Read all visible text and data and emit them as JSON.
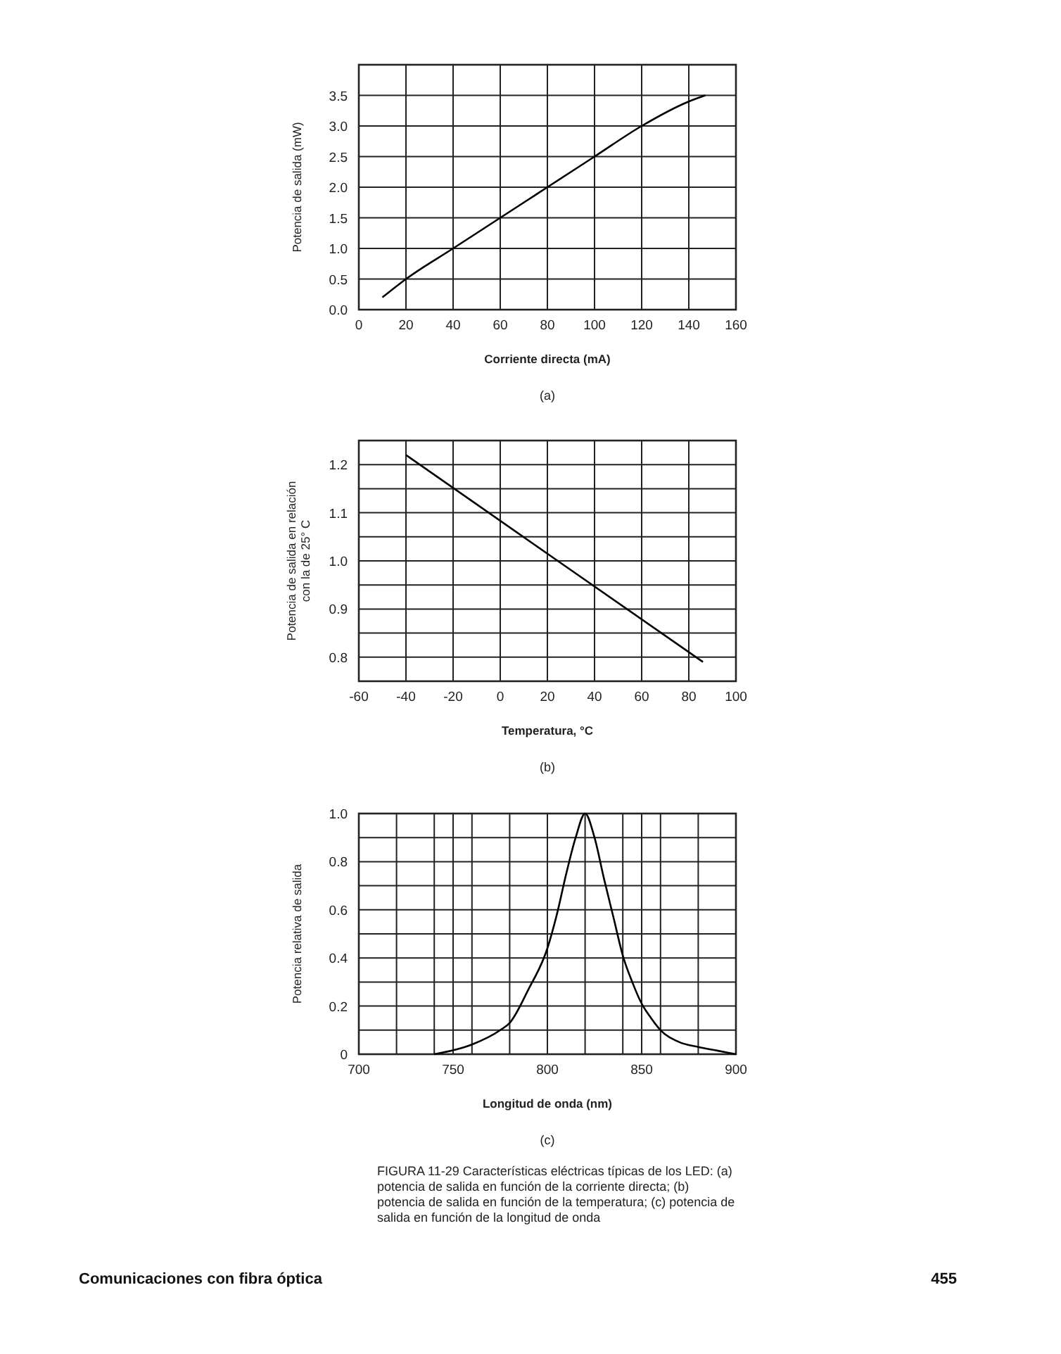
{
  "chart_data": [
    {
      "type": "line",
      "xlabel": "Corriente directa (mA)",
      "ylabel": "Potencia de salida (mW)",
      "annotations": [
        "(a)"
      ],
      "grid": true,
      "marker": "none",
      "line_style": "solid",
      "xlim": [
        0,
        160
      ],
      "xticks": [
        0,
        20,
        40,
        60,
        80,
        100,
        120,
        140,
        160
      ],
      "ylim": [
        0,
        4
      ],
      "yticks": [
        {
          "value": 0,
          "label": "0.0"
        },
        0.5,
        {
          "value": 1,
          "label": "1.0"
        },
        1.5,
        {
          "value": 2,
          "label": "2.0"
        },
        2.5,
        {
          "value": 3,
          "label": "3.0"
        },
        3.5,
        {
          "value": 4,
          "label": null
        }
      ],
      "series": [
        {
          "color": "#000000",
          "x": [
            10,
            20,
            40,
            60,
            80,
            100,
            120,
            140,
            147
          ],
          "values": [
            0.2,
            0.5,
            1.0,
            1.5,
            2.0,
            2.5,
            3.0,
            3.4,
            3.5
          ]
        }
      ]
    },
    {
      "type": "line",
      "xlabel": "Temperatura, °C",
      "ylabel": "Potencia de salida en relación\ncon la de 25° C",
      "annotations": [
        "(b)"
      ],
      "grid": true,
      "marker": "none",
      "line_style": "solid",
      "xlim": [
        -60,
        100
      ],
      "xticks": [
        -60,
        -40,
        -20,
        0,
        20,
        40,
        60,
        80,
        100
      ],
      "ylim": [
        0.75,
        1.25
      ],
      "yticks": [
        {
          "value": 0.75,
          "label": null
        },
        0.8,
        {
          "value": 0.85,
          "label": null
        },
        0.9,
        {
          "value": 0.95,
          "label": null
        },
        {
          "value": 1,
          "label": "1.0"
        },
        {
          "value": 1.05,
          "label": null
        },
        1.1,
        {
          "value": 1.15,
          "label": null
        },
        1.2,
        {
          "value": 1.25,
          "label": null
        }
      ],
      "series": [
        {
          "color": "#000000",
          "x": [
            -40,
            20,
            86
          ],
          "values": [
            1.22,
            1.015,
            0.79
          ]
        }
      ]
    },
    {
      "type": "line",
      "xlabel": "Longitud de onda (nm)",
      "ylabel": "Potencia relativa de salida",
      "annotations": [
        "(c)",
        "FIGURA 11-29 Características eléctricas típicas de los LED: (a) potencia de salida en función de la corriente directa; (b) potencia de salida en función de la temperatura; (c) potencia de salida en función de la longitud de onda",
        "Comunicaciones con fibra óptica",
        "455"
      ],
      "grid": true,
      "marker": "none",
      "line_style": "solid",
      "xlim": [
        700,
        900
      ],
      "xticks": [
        700,
        {
          "value": 720,
          "label": null
        },
        {
          "value": 740,
          "label": null
        },
        750,
        {
          "value": 760,
          "label": null
        },
        {
          "value": 780,
          "label": null
        },
        800,
        {
          "value": 820,
          "label": null
        },
        {
          "value": 840,
          "label": null
        },
        850,
        {
          "value": 860,
          "label": null
        },
        {
          "value": 880,
          "label": null
        },
        900
      ],
      "ylim": [
        0,
        1
      ],
      "yticks": [
        0,
        {
          "value": 0.1,
          "label": null
        },
        0.2,
        {
          "value": 0.3,
          "label": null
        },
        0.4,
        {
          "value": 0.5,
          "label": null
        },
        0.6,
        {
          "value": 0.7,
          "label": null
        },
        0.8,
        {
          "value": 0.9,
          "label": null
        },
        {
          "value": 1,
          "label": "1.0"
        }
      ],
      "series": [
        {
          "color": "#000000",
          "x": [
            740,
            760,
            775,
            780,
            790,
            800,
            805,
            810,
            815,
            820,
            825,
            830,
            835,
            840,
            845,
            850,
            855,
            860,
            870,
            880,
            890,
            900
          ],
          "values": [
            0,
            0.04,
            0.1,
            0.13,
            0.27,
            0.44,
            0.58,
            0.75,
            0.9,
            1.0,
            0.9,
            0.73,
            0.57,
            0.41,
            0.3,
            0.21,
            0.15,
            0.1,
            0.05,
            0.03,
            0.015,
            0
          ]
        }
      ]
    }
  ]
}
